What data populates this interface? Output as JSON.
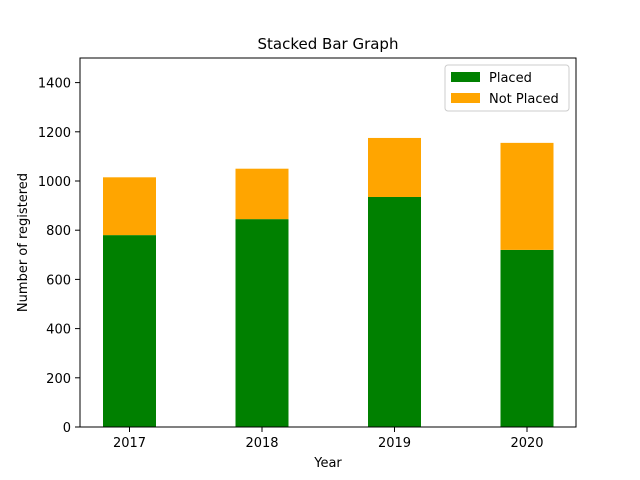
{
  "chart_data": {
    "type": "bar",
    "stacked": true,
    "title": "Stacked Bar Graph",
    "xlabel": "Year",
    "ylabel": "Number of registered",
    "categories": [
      "2017",
      "2018",
      "2019",
      "2020"
    ],
    "series": [
      {
        "name": "Placed",
        "values": [
          780,
          845,
          935,
          720
        ],
        "color": "#008000"
      },
      {
        "name": "Not Placed",
        "values": [
          235,
          205,
          240,
          435
        ],
        "color": "#ffa500"
      }
    ],
    "ylim": [
      0,
      1500
    ],
    "yticks": [
      0,
      200,
      400,
      600,
      800,
      1000,
      1200,
      1400
    ],
    "grid": false,
    "legend": "top-right"
  }
}
